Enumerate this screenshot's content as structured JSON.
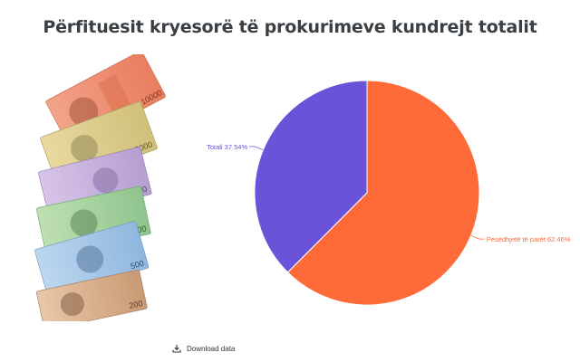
{
  "page": {
    "title": "Përfituesit kryesorë të prokurimeve kundrejt totalit"
  },
  "download": {
    "label": "Download data",
    "icon": "download-icon"
  },
  "decoration": {
    "banknote_labels": [
      "10000",
      "5000",
      "2000",
      "1000",
      "500",
      "200"
    ]
  },
  "chart_data": {
    "type": "pie",
    "slices": [
      {
        "label": "Pesëdhjetë të parët",
        "value": 62.46,
        "display": "Pesëdhjetë të parët 62.46%",
        "color": "#ff6a39"
      },
      {
        "label": "Totali",
        "value": 37.54,
        "display": "Totali 37.54%",
        "color": "#6a52d9"
      }
    ],
    "legend": "none",
    "data_labels": "outside"
  }
}
